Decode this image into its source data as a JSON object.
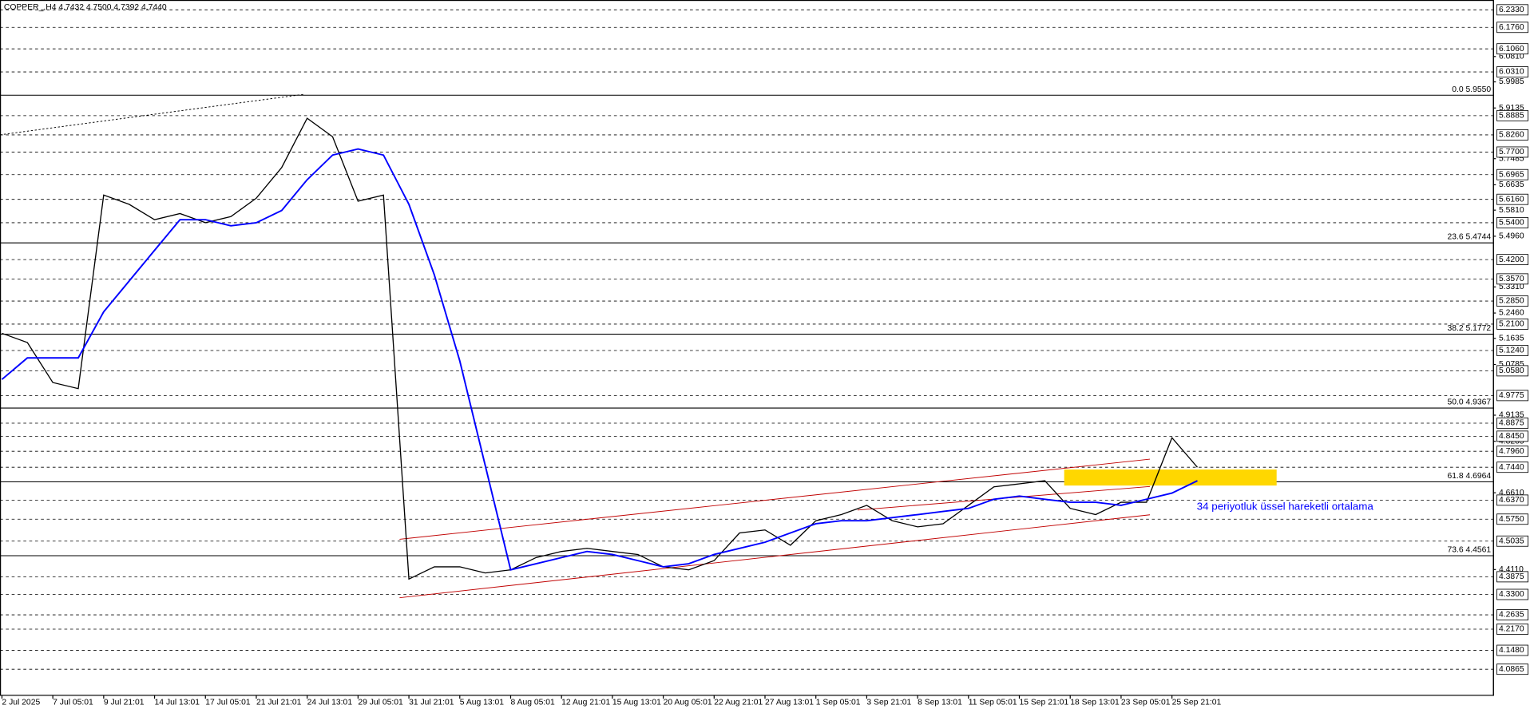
{
  "chart_data": {
    "type": "line",
    "title": "COPPER_,H4 4.7432 4.7500 4.7392 4.7440",
    "annotation": "34 periyotluk üssel hareketli ortalama",
    "categories": [
      "2 Jul 2025",
      null,
      "7 Jul 05:01",
      null,
      "9 Jul 21:01",
      null,
      "14 Jul 13:01",
      null,
      "17 Jul 05:01",
      null,
      "21 Jul 21:01",
      null,
      "24 Jul 13:01",
      null,
      "29 Jul 05:01",
      null,
      "31 Jul 21:01",
      null,
      "5 Aug 13:01",
      null,
      "8 Aug 05:01",
      null,
      "12 Aug 21:01",
      null,
      "15 Aug 13:01",
      null,
      "20 Aug 05:01",
      null,
      "22 Aug 21:01",
      null,
      "27 Aug 13:01",
      null,
      "1 Sep 05:01",
      null,
      "3 Sep 21:01",
      null,
      "8 Sep 13:01",
      null,
      "11 Sep 05:01",
      null,
      "15 Sep 21:01",
      null,
      "18 Sep 13:01",
      null,
      "23 Sep 05:01",
      null,
      "25 Sep 21:01",
      null
    ],
    "series": [
      {
        "name": "COPPER_",
        "color": "#000000",
        "values": [
          5.18,
          5.15,
          5.02,
          5.0,
          5.63,
          5.6,
          5.55,
          5.57,
          5.54,
          5.56,
          5.62,
          5.72,
          5.88,
          5.82,
          5.61,
          5.63,
          4.38,
          4.42,
          4.42,
          4.4,
          4.41,
          4.45,
          4.47,
          4.48,
          4.47,
          4.46,
          4.42,
          4.41,
          4.44,
          4.53,
          4.54,
          4.49,
          4.57,
          4.59,
          4.62,
          4.57,
          4.55,
          4.56,
          4.62,
          4.68,
          4.69,
          4.7,
          4.61,
          4.59,
          4.63,
          4.63,
          4.84,
          4.744
        ]
      },
      {
        "name": "EMA 34",
        "color": "#0000ff",
        "values": [
          5.03,
          5.1,
          5.1,
          5.1,
          5.25,
          5.35,
          5.45,
          5.55,
          5.55,
          5.53,
          5.54,
          5.58,
          5.68,
          5.76,
          5.78,
          5.76,
          5.6,
          5.37,
          5.09,
          4.75,
          4.41,
          4.43,
          4.45,
          4.47,
          4.46,
          4.44,
          4.42,
          4.43,
          4.46,
          4.48,
          4.5,
          4.53,
          4.56,
          4.57,
          4.57,
          4.58,
          4.59,
          4.6,
          4.61,
          4.64,
          4.65,
          4.64,
          4.63,
          4.63,
          4.62,
          4.64,
          4.66,
          4.7
        ]
      }
    ],
    "ylim": [
      4.0,
      6.265
    ],
    "yticks": [
      {
        "value": 6.081,
        "label": "6.0810"
      },
      {
        "value": 5.9985,
        "label": "5.9985"
      },
      {
        "value": 5.9135,
        "label": "5.9135"
      },
      {
        "value": 5.7485,
        "label": "5.7485"
      },
      {
        "value": 5.6635,
        "label": "5.6635"
      },
      {
        "value": 5.581,
        "label": "5.5810"
      },
      {
        "value": 5.496,
        "label": "5.4960"
      },
      {
        "value": 5.331,
        "label": "5.3310"
      },
      {
        "value": 5.246,
        "label": "5.2460"
      },
      {
        "value": 5.1635,
        "label": "5.1635"
      },
      {
        "value": 5.0785,
        "label": "5.0785"
      },
      {
        "value": 4.9135,
        "label": "4.9135"
      },
      {
        "value": 4.8285,
        "label": "4.8285"
      },
      {
        "value": 4.661,
        "label": "4.6610"
      },
      {
        "value": 4.411,
        "label": "4.4110"
      }
    ],
    "levels": [
      {
        "value": 6.233,
        "label": "6.2330"
      },
      {
        "value": 6.176,
        "label": "6.1760"
      },
      {
        "value": 6.106,
        "label": "6.1060"
      },
      {
        "value": 6.031,
        "label": "6.0310"
      },
      {
        "value": 5.8885,
        "label": "5.8885"
      },
      {
        "value": 5.826,
        "label": "5.8260"
      },
      {
        "value": 5.77,
        "label": "5.7700"
      },
      {
        "value": 5.6965,
        "label": "5.6965"
      },
      {
        "value": 5.616,
        "label": "5.6160"
      },
      {
        "value": 5.54,
        "label": "5.5400"
      },
      {
        "value": 5.42,
        "label": "5.4200"
      },
      {
        "value": 5.357,
        "label": "5.3570"
      },
      {
        "value": 5.285,
        "label": "5.2850"
      },
      {
        "value": 5.21,
        "label": "5.2100"
      },
      {
        "value": 5.124,
        "label": "5.1240"
      },
      {
        "value": 5.058,
        "label": "5.0580"
      },
      {
        "value": 4.9775,
        "label": "4.9775"
      },
      {
        "value": 4.8875,
        "label": "4.8875"
      },
      {
        "value": 4.845,
        "label": "4.8450"
      },
      {
        "value": 4.796,
        "label": "4.7960"
      },
      {
        "value": 4.744,
        "label": "4.7440"
      },
      {
        "value": 4.637,
        "label": "4.6370"
      },
      {
        "value": 4.575,
        "label": "4.5750"
      },
      {
        "value": 4.5035,
        "label": "4.5035"
      },
      {
        "value": 4.3875,
        "label": "4.3875"
      },
      {
        "value": 4.33,
        "label": "4.3300"
      },
      {
        "value": 4.2635,
        "label": "4.2635"
      },
      {
        "value": 4.217,
        "label": "4.2170"
      },
      {
        "value": 4.148,
        "label": "4.1480"
      },
      {
        "value": 4.0865,
        "label": "4.0865"
      }
    ],
    "fib_levels": [
      {
        "value": 5.955,
        "label": "0.0 5.9550"
      },
      {
        "value": 5.4744,
        "label": "23.6 5.4744"
      },
      {
        "value": 5.1772,
        "label": "38.2 5.1772"
      },
      {
        "value": 4.9367,
        "label": "50.0 4.9367"
      },
      {
        "value": 4.6964,
        "label": "61.8 4.6964"
      },
      {
        "value": 4.4561,
        "label": "73.6 4.4561"
      }
    ]
  }
}
